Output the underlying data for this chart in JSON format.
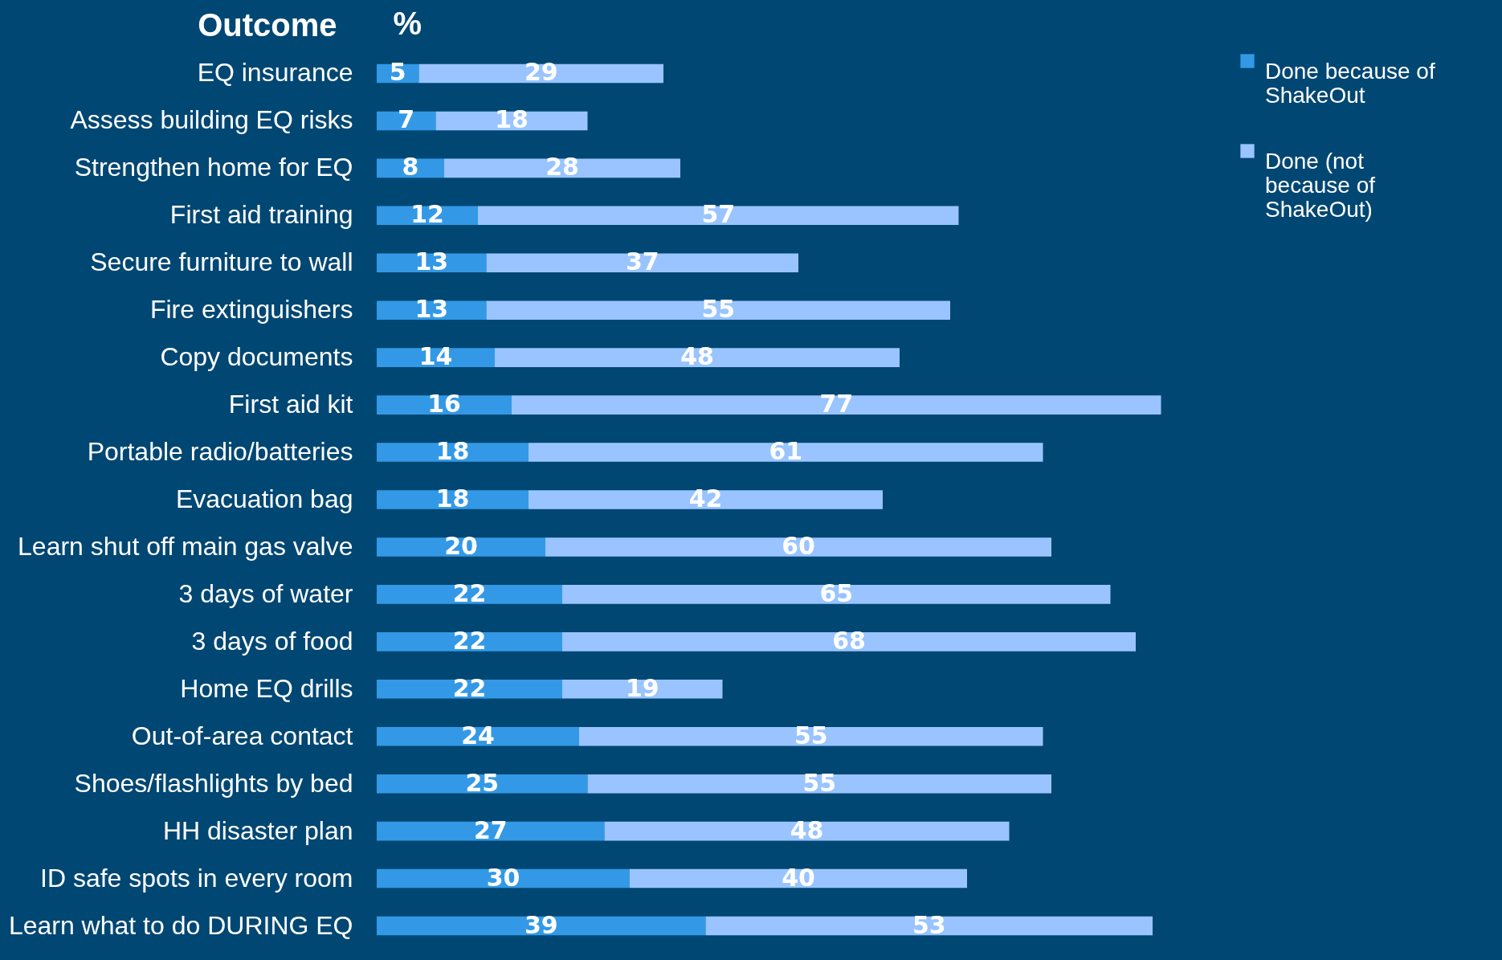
{
  "chart_data": {
    "type": "bar",
    "orientation": "horizontal",
    "stacked": true,
    "data_labels": true,
    "ylabel": "Outcome",
    "xlabel": "%",
    "tick_labels": "y",
    "legend": "right",
    "categories": [
      "EQ insurance",
      "Assess building EQ risks",
      "Strengthen home for EQ",
      "First aid training",
      "Secure furniture to wall",
      "Fire extinguishers",
      "Copy documents",
      "First aid kit",
      "Portable radio/batteries",
      "Evacuation bag",
      "Learn shut off main gas valve",
      "3 days of water",
      "3 days of food",
      "Home EQ drills",
      "Out-of-area contact",
      "Shoes/flashlights by bed",
      "HH disaster plan",
      "ID safe spots in every room",
      "Learn what to do DURING EQ"
    ],
    "series": [
      {
        "name": "Done because of ShakeOut",
        "color": "#3399e6",
        "values": [
          5,
          7,
          8,
          12,
          13,
          13,
          14,
          16,
          18,
          18,
          20,
          22,
          22,
          22,
          24,
          25,
          27,
          30,
          39
        ]
      },
      {
        "name": "Done (not because of ShakeOut)",
        "color": "#99c4ff",
        "values": [
          29,
          18,
          28,
          57,
          37,
          55,
          48,
          77,
          61,
          42,
          60,
          65,
          68,
          19,
          55,
          55,
          48,
          40,
          53
        ]
      }
    ]
  }
}
